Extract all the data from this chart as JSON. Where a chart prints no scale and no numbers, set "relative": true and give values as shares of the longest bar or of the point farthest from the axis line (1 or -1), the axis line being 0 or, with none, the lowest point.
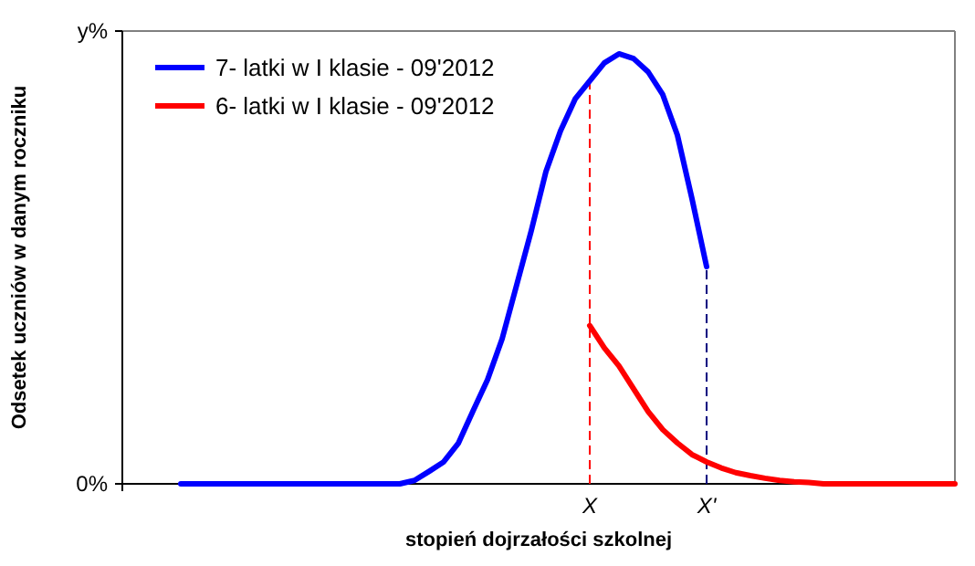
{
  "chart_data": {
    "type": "line",
    "xlabel": "stopień dojrzałości szkolnej",
    "ylabel": "Odsetek uczniów w danym roczniku",
    "categories": [
      null,
      null,
      null,
      null,
      null,
      null,
      null,
      null,
      null,
      null,
      null,
      null,
      null,
      null,
      null,
      null,
      null,
      null,
      null,
      null,
      null,
      null,
      null,
      null,
      null,
      null,
      null,
      null,
      null,
      null,
      null,
      null,
      "X",
      null,
      null,
      null,
      null,
      null,
      null,
      null,
      "X'",
      null,
      null,
      null,
      null,
      null,
      null,
      null,
      null,
      null,
      null,
      null,
      null,
      null,
      null,
      null,
      null,
      null
    ],
    "relative": true,
    "annotations": [
      "0%",
      "y%"
    ],
    "series": [
      {
        "name": "7- latki w I klasie - 09'2012",
        "color": "#0000ff",
        "values": [
          null,
          null,
          null,
          null,
          0,
          0,
          0,
          0,
          0,
          0,
          0,
          0,
          0,
          0,
          0,
          0,
          0,
          0,
          0,
          0,
          0.008,
          0.029,
          0.051,
          0.094,
          0.169,
          0.242,
          0.337,
          0.463,
          0.589,
          0.726,
          0.821,
          0.895,
          0.937,
          0.979,
          1,
          0.989,
          0.958,
          0.905,
          0.811,
          0.663,
          0.505,
          null,
          null,
          null,
          null,
          null,
          null,
          null,
          null,
          null,
          null,
          null,
          null,
          null,
          null,
          null,
          null,
          null
        ]
      },
      {
        "name": "6- latki w I klasie - 09'2012",
        "color": "#ff0000",
        "values": [
          null,
          null,
          null,
          null,
          null,
          null,
          null,
          null,
          null,
          null,
          null,
          null,
          null,
          null,
          null,
          null,
          null,
          null,
          null,
          null,
          null,
          null,
          null,
          null,
          null,
          null,
          null,
          null,
          null,
          null,
          null,
          null,
          0.368,
          0.316,
          0.274,
          0.221,
          0.168,
          0.126,
          0.095,
          0.068,
          0.051,
          0.037,
          0.026,
          0.019,
          0.013,
          0.008,
          0.005,
          0.003,
          0,
          0,
          0,
          0,
          0,
          0,
          0,
          0,
          0,
          0
        ]
      }
    ],
    "ref_lines": [
      {
        "axis": "x",
        "value": "X",
        "color": "#ff0000",
        "line_style": "dashed"
      },
      {
        "axis": "x",
        "value": "X'",
        "color": "#000080",
        "line_style": "dashed"
      }
    ],
    "legend": "top left",
    "grid": false,
    "marker": "none",
    "line_style": "solid"
  }
}
